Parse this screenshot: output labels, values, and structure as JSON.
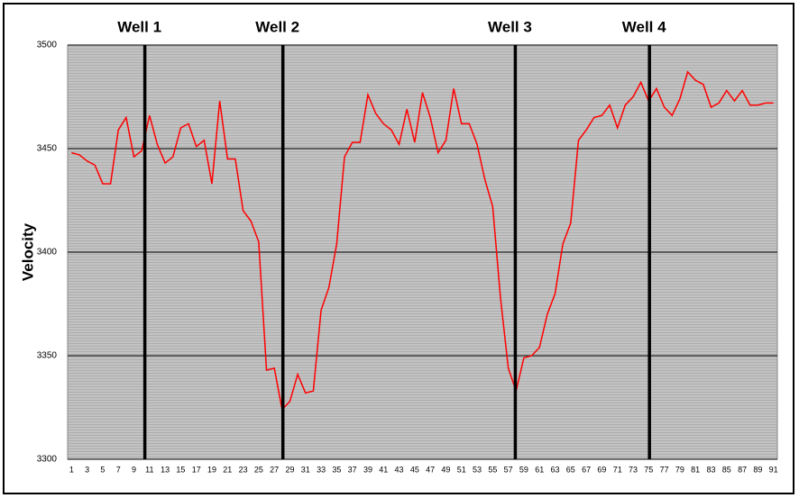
{
  "chart_data": {
    "type": "line",
    "y_label": "Velocity",
    "categories": [
      "1",
      null,
      "3",
      null,
      "5",
      null,
      "7",
      null,
      "9",
      null,
      "11",
      null,
      "13",
      null,
      "15",
      null,
      "17",
      null,
      "19",
      null,
      "21",
      null,
      "23",
      null,
      "25",
      null,
      "27",
      null,
      "29",
      null,
      "31",
      null,
      "33",
      null,
      "35",
      null,
      "37",
      null,
      "39",
      null,
      "41",
      null,
      "43",
      null,
      "45",
      null,
      "47",
      null,
      "49",
      null,
      "51",
      null,
      "53",
      null,
      "55",
      null,
      "57",
      null,
      "59",
      null,
      "61",
      null,
      "63",
      null,
      "65",
      null,
      "67",
      null,
      "69",
      null,
      "71",
      null,
      "73",
      null,
      "75",
      null,
      "77",
      null,
      "79",
      null,
      "81",
      null,
      "83",
      null,
      "85",
      null,
      "87",
      null,
      "89",
      null,
      "91"
    ],
    "values": [
      3448,
      3447,
      3444,
      3442,
      3433,
      3433,
      3459,
      3465,
      3446,
      3449,
      3466,
      3452,
      3443,
      3446,
      3460,
      3462,
      3451,
      3454,
      3433,
      3473,
      3445,
      3445,
      3420,
      3415,
      3405,
      3343,
      3344,
      3324,
      3328,
      3341,
      3332,
      3333,
      3372,
      3383,
      3404,
      3446,
      3453,
      3453,
      3476,
      3467,
      3462,
      3459,
      3452,
      3469,
      3453,
      3477,
      3465,
      3448,
      3454,
      3479,
      3462,
      3462,
      3452,
      3435,
      3422,
      3378,
      3344,
      3333,
      3349,
      3350,
      3354,
      3370,
      3380,
      3404,
      3414,
      3454,
      3459,
      3465,
      3466,
      3471,
      3460,
      3471,
      3475,
      3482,
      3473,
      3479,
      3470,
      3466,
      3474,
      3487,
      3483,
      3481,
      3470,
      3472,
      3478,
      3473,
      3478,
      3471,
      3471,
      3472,
      3472
    ],
    "color": "#ff0000",
    "ylim": [
      3300,
      3500
    ],
    "yticks": [
      3300,
      3350,
      3400,
      3450,
      3500
    ],
    "grid": true,
    "wells": [
      {
        "label": "Well 1",
        "x": 10.4
      },
      {
        "label": "Well 2",
        "x": 28.1
      },
      {
        "label": "Well 3",
        "x": 57.9
      },
      {
        "label": "Well 4",
        "x": 75.1
      }
    ]
  }
}
